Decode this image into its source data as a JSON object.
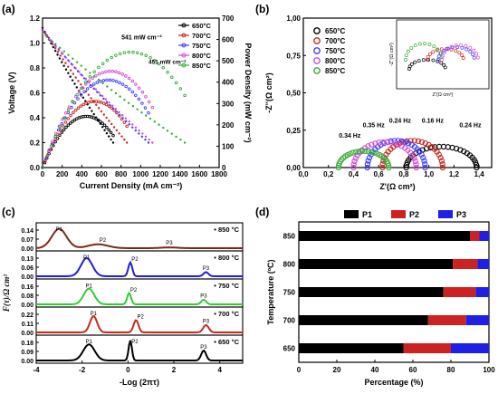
{
  "colors": {
    "c650": "#000000",
    "c700": "#c8281e",
    "c750": "#3c3cff",
    "c800": "#d24bd2",
    "c850": "#3caa3c",
    "ddBlack": "#000000",
    "ddBrown": "#7a2a14",
    "ddBlue": "#1f1fd6",
    "ddGreen": "#33cc33",
    "ddRed": "#c8281e",
    "ddPink": "#d44",
    "p1": "#000000",
    "p2": "#cc2222",
    "p3": "#1f1fe8"
  },
  "panel_labels": {
    "a": "(a)",
    "b": "(b)",
    "c": "(c)",
    "d": "(d)"
  },
  "chart_data": [
    {
      "panel": "a",
      "type": "line",
      "xlabel": "Current Density (mA cm⁻²)",
      "ylabel_left": "Voltage (V)",
      "ylabel_right": "Power Density (mW cm⁻²)",
      "xlim": [
        0,
        1800
      ],
      "xticks": [
        "0",
        "200",
        "400",
        "600",
        "800",
        "1000",
        "1200",
        "1400",
        "1600",
        "1800"
      ],
      "ylim_left": [
        0,
        1.2
      ],
      "yticks_left": [
        "0.0",
        "0.2",
        "0.4",
        "0.6",
        "0.8",
        "1.0",
        "1.2"
      ],
      "ylim_right": [
        0,
        700
      ],
      "yticks_right": [
        "0",
        "100",
        "200",
        "300",
        "400",
        "500",
        "600",
        "700"
      ],
      "legend": [
        "650°C",
        "700°C",
        "750°C",
        "800°C",
        "850°C"
      ],
      "annotations": [
        "541 mW cm⁻²",
        "451 mW cm⁻²"
      ],
      "series": [
        {
          "name": "650°C",
          "ocv": 1.12,
          "imax": 720,
          "peak_power": 240
        },
        {
          "name": "700°C",
          "ocv": 1.11,
          "imax": 860,
          "peak_power": 310
        },
        {
          "name": "750°C",
          "ocv": 1.1,
          "imax": 1080,
          "peak_power": 410
        },
        {
          "name": "800°C",
          "ocv": 1.09,
          "imax": 1120,
          "peak_power": 451
        },
        {
          "name": "850°C",
          "ocv": 1.08,
          "imax": 1450,
          "peak_power": 541
        }
      ]
    },
    {
      "panel": "b",
      "type": "scatter",
      "xlabel": "Z'(Ω cm²)",
      "ylabel": "-Z''(Ω cm²)",
      "xlim": [
        0,
        1.5
      ],
      "xticks": [
        "0,0",
        "0,2",
        "0,4",
        "0,6",
        "0,8",
        "1,0",
        "1,2",
        "1,4"
      ],
      "ylim": [
        0,
        1.0
      ],
      "yticks": [
        "0,00",
        "0,25",
        "0,50",
        "0,75",
        "1,00"
      ],
      "legend": [
        "650°C",
        "700°C",
        "750°C",
        "800°C",
        "850°C"
      ],
      "freq_labels": [
        "0.34 Hz",
        "0.35 Hz",
        "0.24 Hz",
        "0.16 Hz",
        "0.24 Hz"
      ],
      "inset": {
        "xlabel": "Z'(Ω cm²)",
        "ylabel": "-Z''(Ω cm²)"
      },
      "series": [
        {
          "name": "650°C",
          "r_ohm": 0.82,
          "r_pol": 0.56,
          "peak": 0.14
        },
        {
          "name": "700°C",
          "r_ohm": 0.63,
          "r_pol": 0.48,
          "peak": 0.18
        },
        {
          "name": "750°C",
          "r_ohm": 0.51,
          "r_pol": 0.46,
          "peak": 0.18
        },
        {
          "name": "800°C",
          "r_ohm": 0.4,
          "r_pol": 0.5,
          "peak": 0.17
        },
        {
          "name": "850°C",
          "r_ohm": 0.28,
          "r_pol": 0.4,
          "peak": 0.11
        }
      ]
    },
    {
      "panel": "c",
      "type": "line",
      "xlabel": "-Log (2πτ)",
      "ylabel": "F(τ)/Ω cm²",
      "xlim": [
        -4,
        5
      ],
      "xticks": [
        "-4",
        "-2",
        "0",
        "2",
        "4"
      ],
      "peak_labels": [
        "P1",
        "P2",
        "P3"
      ],
      "series": [
        {
          "name": "850 °C",
          "ymax_tick": "0.14",
          "ymid_tick": "0.07",
          "ymin_tick": "0.00",
          "peaks": [
            [
              -3.0,
              0.15,
              0.45
            ],
            [
              -1.3,
              0.03,
              0.6
            ],
            [
              1.8,
              0.006,
              0.5
            ]
          ]
        },
        {
          "name": "800 °C",
          "ymax_tick": "0.13",
          "ymid_tick": "0.06",
          "ymin_tick": "0.00",
          "peaks": [
            [
              -1.8,
              0.13,
              0.35
            ],
            [
              0.1,
              0.1,
              0.12
            ],
            [
              3.4,
              0.03,
              0.15
            ]
          ]
        },
        {
          "name": "750 °C",
          "ymax_tick": "0.16",
          "ymid_tick": "0.08",
          "ymin_tick": "0.00",
          "peaks": [
            [
              -1.7,
              0.14,
              0.32
            ],
            [
              0.05,
              0.1,
              0.12
            ],
            [
              3.3,
              0.04,
              0.15
            ]
          ]
        },
        {
          "name": "700 °C",
          "ymax_tick": "0.22",
          "ymid_tick": "0.11",
          "ymin_tick": "0.00",
          "peaks": [
            [
              -1.5,
              0.2,
              0.22
            ],
            [
              0.35,
              0.15,
              0.15
            ],
            [
              3.4,
              0.09,
              0.17
            ]
          ]
        },
        {
          "name": "650 °C",
          "ymax_tick": "0.18",
          "ymid_tick": "0.09",
          "ymin_tick": "0.00",
          "peaks": [
            [
              -1.7,
              0.16,
              0.35
            ],
            [
              0.1,
              0.2,
              0.1
            ],
            [
              3.3,
              0.1,
              0.15
            ]
          ]
        }
      ]
    },
    {
      "panel": "d",
      "type": "bar",
      "orientation": "horizontal",
      "stacked": true,
      "xlabel": "Percentage (%)",
      "ylabel": "Temperature (ºC)",
      "xlim": [
        0,
        100
      ],
      "xticks": [
        "0",
        "20",
        "40",
        "60",
        "80",
        "100"
      ],
      "legend": [
        "P1",
        "P2",
        "P3"
      ],
      "categories": [
        "850",
        "800",
        "750",
        "700",
        "650"
      ],
      "series": [
        {
          "name": "P1",
          "values": [
            90,
            81,
            76,
            68,
            55
          ]
        },
        {
          "name": "P2",
          "values": [
            5,
            13,
            17,
            20,
            25
          ]
        },
        {
          "name": "P3",
          "values": [
            5,
            6,
            7,
            12,
            20
          ]
        }
      ]
    }
  ]
}
